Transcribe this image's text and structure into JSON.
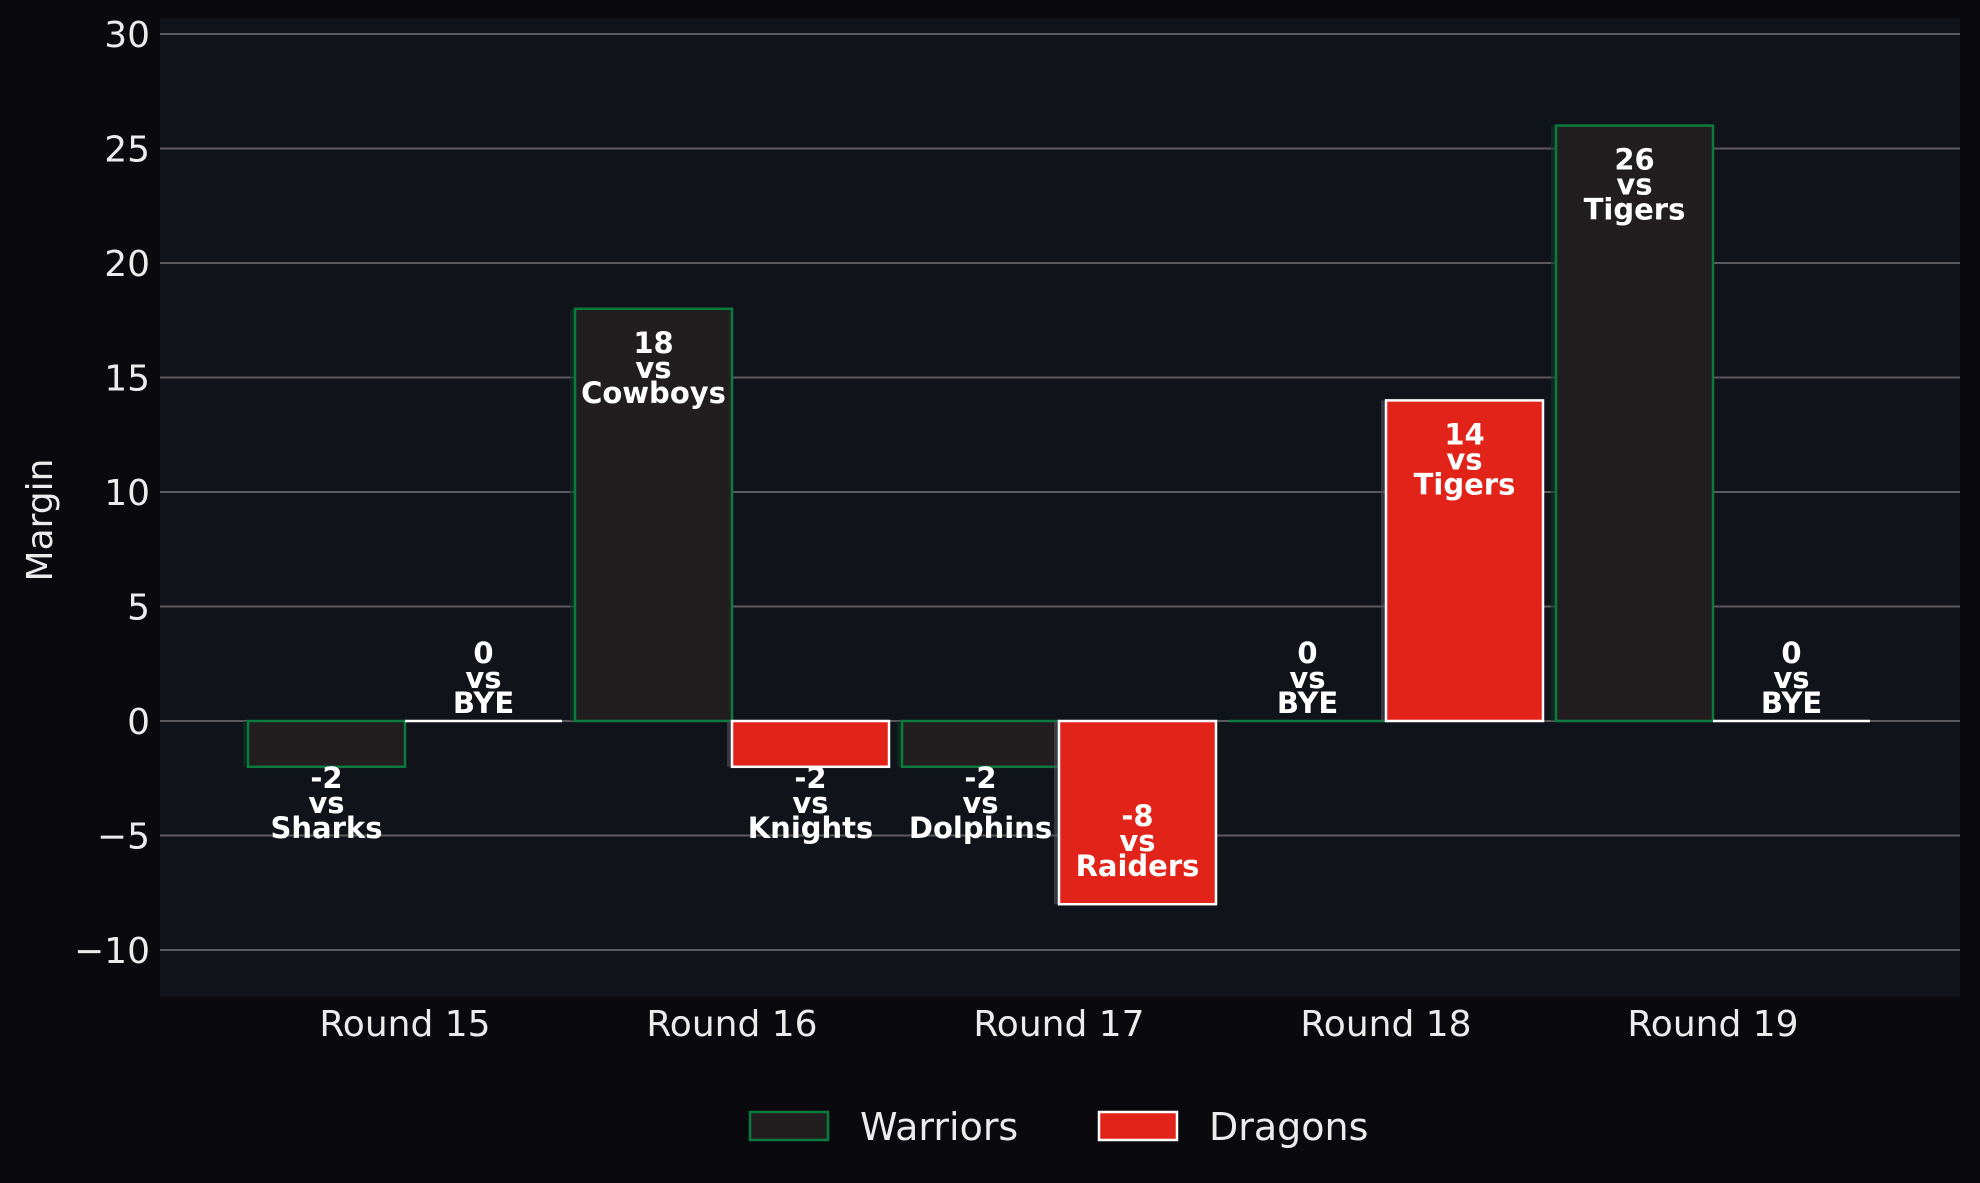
{
  "chart_data": {
    "type": "bar",
    "categories": [
      "Round 15",
      "Round 16",
      "Round 17",
      "Round 18",
      "Round 19"
    ],
    "ylabel": "Margin",
    "xlabel": "",
    "title": "",
    "ylim": [
      -12,
      30
    ],
    "yticks": [
      -10,
      -5,
      0,
      5,
      10,
      15,
      20,
      25,
      30
    ],
    "ytick_labels": [
      "−10",
      "−5",
      "0",
      "5",
      "10",
      "15",
      "20",
      "25",
      "30"
    ],
    "grid": "horizontal",
    "legend_position": "bottom-center",
    "series": [
      {
        "name": "Warriors",
        "color": "#221e1f",
        "edge_color": "#0a7a3e",
        "values": [
          -2,
          18,
          -2,
          0,
          26
        ],
        "labels": [
          {
            "margin": "-2",
            "vs": "vs",
            "opponent": "Sharks"
          },
          {
            "margin": "18",
            "vs": "vs",
            "opponent": "Cowboys"
          },
          {
            "margin": "-2",
            "vs": "vs",
            "opponent": "Dolphins"
          },
          {
            "margin": "0",
            "vs": "vs",
            "opponent": "BYE"
          },
          {
            "margin": "26",
            "vs": "vs",
            "opponent": "Tigers"
          }
        ]
      },
      {
        "name": "Dragons",
        "color": "#e2231a",
        "edge_color": "#ffffff",
        "values": [
          0,
          -2,
          -8,
          14,
          0
        ],
        "labels": [
          {
            "margin": "0",
            "vs": "vs",
            "opponent": "BYE"
          },
          {
            "margin": "-2",
            "vs": "vs",
            "opponent": "Knights"
          },
          {
            "margin": "-8",
            "vs": "vs",
            "opponent": "Raiders"
          },
          {
            "margin": "14",
            "vs": "vs",
            "opponent": "Tigers"
          },
          {
            "margin": "0",
            "vs": "vs",
            "opponent": "BYE"
          }
        ]
      }
    ]
  },
  "colors": {
    "page_background": "#0a0a0e",
    "plot_background": "#11131b",
    "grid": "#5a5a5e",
    "text": "#ececec"
  }
}
